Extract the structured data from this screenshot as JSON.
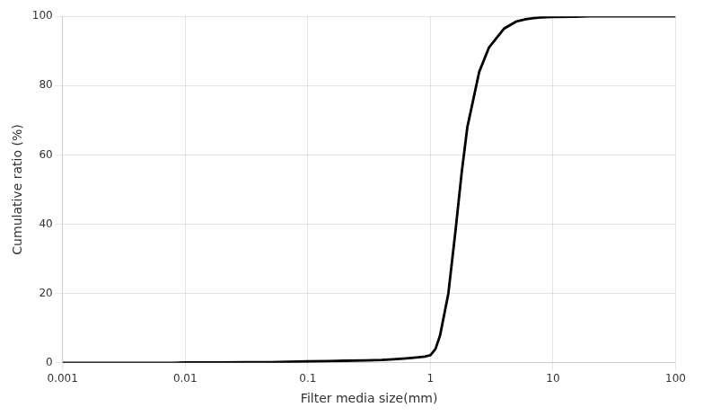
{
  "chart_data": {
    "type": "line",
    "xlabel": "Filter media size(mm)",
    "ylabel": "Cumulative ratio (%)",
    "log": "x",
    "grid": true,
    "color": "#000000",
    "xlim": [
      0.001,
      100
    ],
    "ylim": [
      0,
      100
    ],
    "xticks": [
      0.001,
      0.01,
      0.1,
      1,
      10,
      100
    ],
    "yticks": [
      0,
      20,
      40,
      60,
      80,
      100
    ],
    "x": [
      0.001,
      0.005,
      0.008,
      0.01,
      0.02,
      0.03,
      0.05,
      0.07,
      0.1,
      0.15,
      0.2,
      0.3,
      0.4,
      0.5,
      0.6,
      0.7,
      0.8,
      0.9,
      1.0,
      1.1,
      1.2,
      1.4,
      1.6,
      1.8,
      2.0,
      2.5,
      3.0,
      4.0,
      5.0,
      6.0,
      7.0,
      8.0,
      10.0,
      15.0,
      20.0,
      50.0,
      100.0
    ],
    "values": [
      0,
      0,
      0,
      0.1,
      0.1,
      0.15,
      0.2,
      0.3,
      0.4,
      0.5,
      0.6,
      0.7,
      0.8,
      1.0,
      1.2,
      1.4,
      1.6,
      1.8,
      2.2,
      4.0,
      8.0,
      20.0,
      38.0,
      55.0,
      68.0,
      84.0,
      91.0,
      96.5,
      98.5,
      99.2,
      99.5,
      99.7,
      99.85,
      99.9,
      100.0,
      100.0,
      100.0
    ]
  }
}
